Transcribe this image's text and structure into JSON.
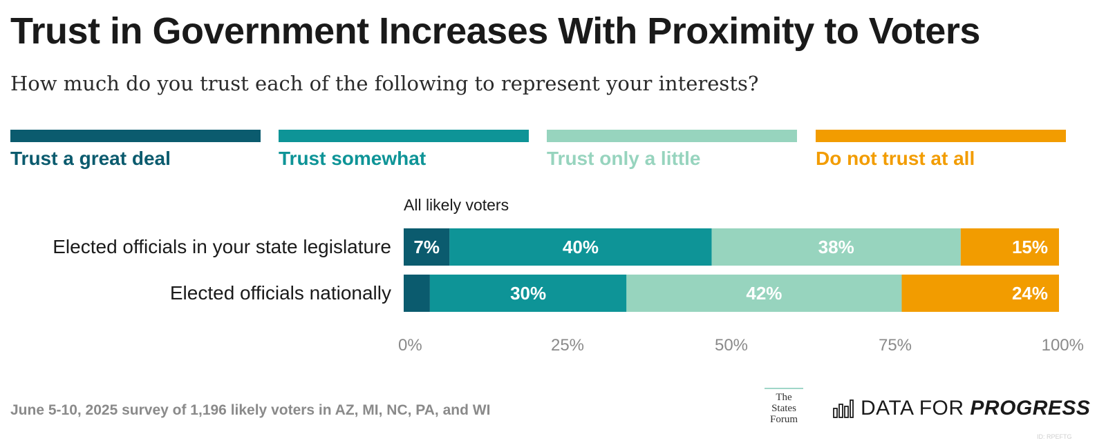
{
  "title": "Trust in Government Increases With Proximity to Voters",
  "subtitle": "How much do you trust each of the following to represent your interests?",
  "legend": [
    {
      "label": "Trust a great deal",
      "color": "#0b5b6e"
    },
    {
      "label": "Trust somewhat",
      "color": "#0e9497"
    },
    {
      "label": "Trust only a little",
      "color": "#97d4be"
    },
    {
      "label": "Do not trust at all",
      "color": "#f29c00"
    }
  ],
  "chart_data": {
    "type": "bar",
    "orientation": "horizontal",
    "stacked": true,
    "group_label": "All likely voters",
    "categories": [
      "Elected officials in your state legislature",
      "Elected officials nationally"
    ],
    "series": [
      {
        "name": "Trust a great deal",
        "values": [
          7,
          4
        ],
        "labels": [
          "7%",
          ""
        ]
      },
      {
        "name": "Trust somewhat",
        "values": [
          40,
          30
        ],
        "labels": [
          "40%",
          "30%"
        ]
      },
      {
        "name": "Trust only a little",
        "values": [
          38,
          42
        ],
        "labels": [
          "38%",
          "42%"
        ]
      },
      {
        "name": "Do not trust at all",
        "values": [
          15,
          24
        ],
        "labels": [
          "15%",
          "24%"
        ]
      }
    ],
    "xlim": [
      0,
      100
    ],
    "xticks": [
      "0%",
      "25%",
      "50%",
      "75%",
      "100%"
    ]
  },
  "footnote": "June 5-10, 2025 survey of 1,196 likely voters in AZ, MI, NC, PA, and WI",
  "logos": {
    "states_forum": [
      "The",
      "States",
      "Forum"
    ],
    "dfp_light": "DATA FOR ",
    "dfp_bold": "PROGRESS"
  },
  "chart_id": "ID: RPEFTG"
}
